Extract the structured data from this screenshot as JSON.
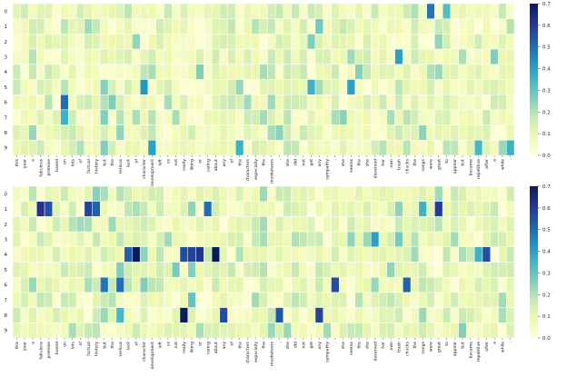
{
  "chart_data": [
    {
      "type": "heatmap",
      "title": "",
      "xlabel": "",
      "ylabel": "",
      "rows": [
        "0",
        "1",
        "2",
        "3",
        "4",
        "5",
        "6",
        "7",
        "8",
        "9"
      ],
      "columns": [
        "this",
        "year",
        "a",
        "fabulous",
        "premise",
        "based",
        "on",
        "lots",
        "of",
        "factual",
        "history",
        "but",
        "the",
        "serious",
        "lack",
        "of",
        "character",
        "development",
        "left",
        "us",
        "not",
        "really",
        "liking",
        "or",
        "caring",
        "about",
        "any",
        "of",
        "the",
        "characters",
        "especially",
        "the",
        "musketeers",
        ",",
        "she",
        "did",
        "not",
        "get",
        "any",
        "sympathy",
        "-",
        "she",
        "seems",
        "the",
        "she",
        "deserved",
        "her",
        "own",
        "trash",
        "chucks",
        "the",
        "songs",
        "were",
        "great",
        "to",
        "appear",
        "but",
        "became",
        "repetitive",
        "after",
        "a",
        "while",
        "."
      ],
      "colorbar": {
        "min": 0.0,
        "max": 0.7,
        "ticks": [
          "0.0",
          "0.1",
          "0.2",
          "0.3",
          "0.4",
          "0.5",
          "0.6",
          "0.7"
        ],
        "colormap": "YlGnBu"
      },
      "seed": 11,
      "base_level": 0.08,
      "highlights": [
        {
          "row": 0,
          "col": 52,
          "value": 0.48
        },
        {
          "row": 0,
          "col": 54,
          "value": 0.32
        },
        {
          "row": 1,
          "col": 38,
          "value": 0.28
        },
        {
          "row": 1,
          "col": 9,
          "value": 0.22
        },
        {
          "row": 2,
          "col": 15,
          "value": 0.24
        },
        {
          "row": 2,
          "col": 37,
          "value": 0.26
        },
        {
          "row": 3,
          "col": 48,
          "value": 0.4
        },
        {
          "row": 4,
          "col": 23,
          "value": 0.26
        },
        {
          "row": 5,
          "col": 16,
          "value": 0.42
        },
        {
          "row": 5,
          "col": 37,
          "value": 0.36
        },
        {
          "row": 5,
          "col": 42,
          "value": 0.4
        },
        {
          "row": 6,
          "col": 6,
          "value": 0.5
        },
        {
          "row": 6,
          "col": 29,
          "value": 0.22
        },
        {
          "row": 7,
          "col": 6,
          "value": 0.36
        },
        {
          "row": 7,
          "col": 11,
          "value": 0.26
        },
        {
          "row": 8,
          "col": 13,
          "value": 0.24
        },
        {
          "row": 8,
          "col": 17,
          "value": 0.18
        },
        {
          "row": 9,
          "col": 17,
          "value": 0.4
        },
        {
          "row": 9,
          "col": 28,
          "value": 0.36
        },
        {
          "row": 9,
          "col": 58,
          "value": 0.34
        },
        {
          "row": 9,
          "col": 62,
          "value": 0.36
        }
      ]
    },
    {
      "type": "heatmap",
      "title": "",
      "xlabel": "",
      "ylabel": "",
      "rows": [
        "0",
        "1",
        "2",
        "3",
        "4",
        "5",
        "6",
        "7",
        "8",
        "9"
      ],
      "columns": [
        "this",
        "year",
        "a",
        "fabulous",
        "premise",
        "based",
        "on",
        "lots",
        "of",
        "factual",
        "history",
        "but",
        "the",
        "serious",
        "lack",
        "of",
        "character",
        "development",
        "left",
        "us",
        "not",
        "really",
        "liking",
        "or",
        "caring",
        "about",
        "any",
        "of",
        "the",
        "characters",
        "especially",
        "the",
        "musketeers",
        ",",
        "she",
        "did",
        "not",
        "get",
        "any",
        "sympathy",
        "-",
        "she",
        "seems",
        "the",
        "she",
        "deserved",
        "her",
        "own",
        "trash",
        "chucks",
        "the",
        "songs",
        "were",
        "great",
        "to",
        "appear",
        "but",
        "became",
        "repetitive",
        "after",
        "a",
        "while",
        "."
      ],
      "colorbar": {
        "min": 0.0,
        "max": 0.7,
        "ticks": [
          "0.0",
          "0.1",
          "0.2",
          "0.3",
          "0.4",
          "0.5",
          "0.6",
          "0.7"
        ],
        "colormap": "YlGnBu"
      },
      "seed": 23,
      "base_level": 0.1,
      "highlights": [
        {
          "row": 1,
          "col": 3,
          "value": 0.62
        },
        {
          "row": 1,
          "col": 4,
          "value": 0.55
        },
        {
          "row": 1,
          "col": 9,
          "value": 0.58
        },
        {
          "row": 1,
          "col": 10,
          "value": 0.52
        },
        {
          "row": 1,
          "col": 24,
          "value": 0.5
        },
        {
          "row": 1,
          "col": 53,
          "value": 0.6
        },
        {
          "row": 1,
          "col": 51,
          "value": 0.36
        },
        {
          "row": 4,
          "col": 14,
          "value": 0.52
        },
        {
          "row": 4,
          "col": 15,
          "value": 0.72
        },
        {
          "row": 4,
          "col": 21,
          "value": 0.56
        },
        {
          "row": 4,
          "col": 22,
          "value": 0.58
        },
        {
          "row": 4,
          "col": 23,
          "value": 0.62
        },
        {
          "row": 4,
          "col": 25,
          "value": 0.7
        },
        {
          "row": 4,
          "col": 59,
          "value": 0.56
        },
        {
          "row": 4,
          "col": 58,
          "value": 0.36
        },
        {
          "row": 3,
          "col": 45,
          "value": 0.4
        },
        {
          "row": 6,
          "col": 11,
          "value": 0.48
        },
        {
          "row": 6,
          "col": 13,
          "value": 0.5
        },
        {
          "row": 6,
          "col": 40,
          "value": 0.56
        },
        {
          "row": 6,
          "col": 49,
          "value": 0.52
        },
        {
          "row": 7,
          "col": 22,
          "value": 0.3
        },
        {
          "row": 8,
          "col": 21,
          "value": 0.72
        },
        {
          "row": 8,
          "col": 26,
          "value": 0.56
        },
        {
          "row": 8,
          "col": 33,
          "value": 0.54
        },
        {
          "row": 8,
          "col": 38,
          "value": 0.58
        },
        {
          "row": 8,
          "col": 13,
          "value": 0.34
        }
      ]
    }
  ]
}
